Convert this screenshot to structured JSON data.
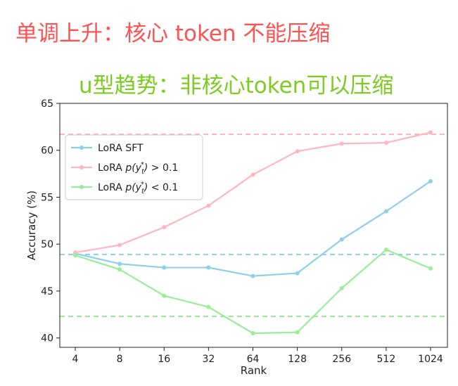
{
  "annotations": {
    "monotonic": "单调上升：核心 token 不能压缩",
    "u_shape": "u型趋势：非核心token可以压缩"
  },
  "chart_data": {
    "type": "line",
    "xlabel": "Rank",
    "ylabel": "Accuracy (%)",
    "categories": [
      "4",
      "8",
      "16",
      "32",
      "64",
      "128",
      "256",
      "512",
      "1024"
    ],
    "ylim": [
      39,
      65
    ],
    "yticks": [
      40,
      45,
      50,
      55,
      60,
      65
    ],
    "grid": false,
    "legend_position": "upper-left",
    "series": [
      {
        "name": "LoRA SFT",
        "color": "#8ecfea",
        "values": [
          49.0,
          47.9,
          47.5,
          47.5,
          46.6,
          46.9,
          50.5,
          53.5,
          56.7
        ],
        "baseline": 48.9
      },
      {
        "name": "LoRA p(y_t^*) > 0.1",
        "color": "#ffb6c1",
        "values": [
          49.1,
          49.9,
          51.8,
          54.1,
          57.4,
          59.9,
          60.7,
          60.8,
          61.9
        ],
        "baseline": 61.7
      },
      {
        "name": "LoRA p(y_t^*) < 0.1",
        "color": "#99ee99",
        "values": [
          48.8,
          47.3,
          44.5,
          43.3,
          40.5,
          40.6,
          45.3,
          49.4,
          47.4
        ],
        "baseline": 42.3
      }
    ]
  }
}
